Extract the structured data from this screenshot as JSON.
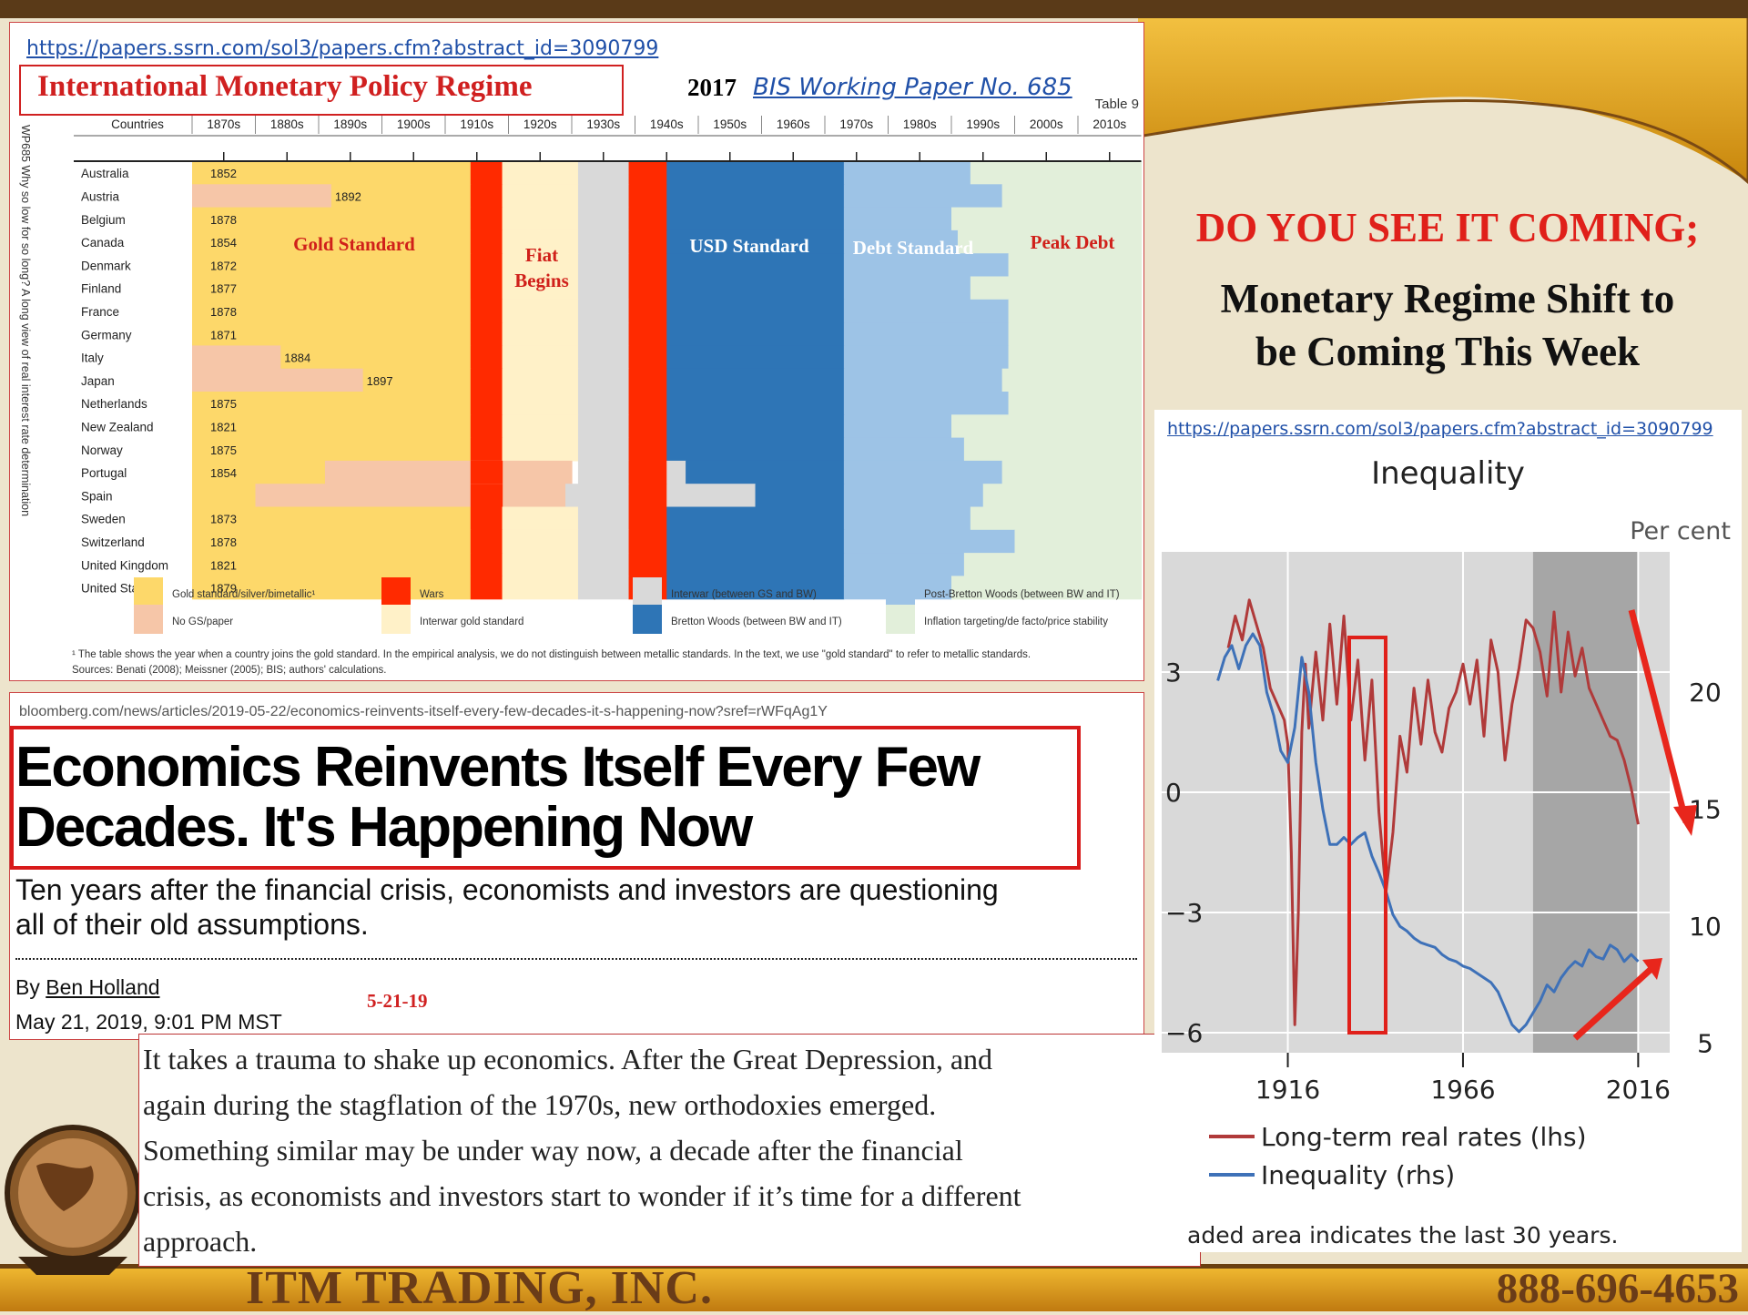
{
  "slide": {
    "headline": "DO YOU SEE IT COMING;",
    "subhead_line1": "Monetary Regime Shift to",
    "subhead_line2": "be Coming This Week",
    "company": "ITM TRADING, INC.",
    "phone": "888-696-4653",
    "colors": {
      "accent_red": "#e0201a",
      "brand_gold": "#e8a820",
      "brand_brown": "#5a3a18"
    },
    "icons": [
      "globe-icon"
    ]
  },
  "regime_panel": {
    "url": "https://papers.ssrn.com/sol3/papers.cfm?abstract_id=3090799",
    "title": "International Monetary Policy Regime",
    "year": "2017",
    "paper_link": "BIS Working Paper No. 685",
    "table_label": "Table 9",
    "side_label": "WP685 Why so low for so long? A long view of real interest rate determination",
    "footnote": "¹ The table shows the year when a country joins the gold standard. In the empirical analysis, we do not distinguish between metallic standards. In the text, we use \"gold standard\" to refer to metallic standards.",
    "sources": "Sources: Benati (2008); Meissner (2005); BIS; authors' calculations.",
    "regime_labels": {
      "gold": "Gold Standard",
      "fiat1": "Fiat",
      "fiat2": "Begins",
      "usd": "USD Standard",
      "debt": "Debt Standard",
      "peak": "Peak Debt"
    },
    "legend": [
      {
        "label": "Gold standard/silver/bimetallic¹",
        "color": "#fdd86a"
      },
      {
        "label": "No GS/paper",
        "color": "#f6c6a8"
      },
      {
        "label": "Wars",
        "color": "#ff2a00"
      },
      {
        "label": "Interwar gold standard",
        "color": "#fff1c8"
      },
      {
        "label": "Interwar (between GS and BW)",
        "color": "#d9d9d9"
      },
      {
        "label": "Bretton Woods (between BW and IT)",
        "color": "#2e75b6"
      },
      {
        "label": "Post-Bretton Woods (between BW and IT)",
        "color": "#9dc3e6"
      },
      {
        "label": "Inflation targeting/de facto/price stability",
        "color": "#e2efda"
      }
    ]
  },
  "chart_data": [
    {
      "type": "table",
      "columns": [
        "Countries",
        "1870s",
        "1880s",
        "1890s",
        "1900s",
        "1910s",
        "1920s",
        "1930s",
        "1940s",
        "1950s",
        "1960s",
        "1970s",
        "1980s",
        "1990s",
        "2000s",
        "2010s"
      ],
      "rows": [
        {
          "country": "Australia",
          "gold_year": "1852"
        },
        {
          "country": "Austria",
          "gold_year": "1892"
        },
        {
          "country": "Belgium",
          "gold_year": "1878"
        },
        {
          "country": "Canada",
          "gold_year": "1854"
        },
        {
          "country": "Denmark",
          "gold_year": "1872"
        },
        {
          "country": "Finland",
          "gold_year": "1877"
        },
        {
          "country": "France",
          "gold_year": "1878"
        },
        {
          "country": "Germany",
          "gold_year": "1871"
        },
        {
          "country": "Italy",
          "gold_year": "1884"
        },
        {
          "country": "Japan",
          "gold_year": "1897"
        },
        {
          "country": "Netherlands",
          "gold_year": "1875"
        },
        {
          "country": "New Zealand",
          "gold_year": "1821"
        },
        {
          "country": "Norway",
          "gold_year": "1875"
        },
        {
          "country": "Portugal",
          "gold_year": "1854"
        },
        {
          "country": "Spain",
          "gold_year": ""
        },
        {
          "country": "Sweden",
          "gold_year": "1873"
        },
        {
          "country": "Switzerland",
          "gold_year": "1878"
        },
        {
          "country": "United Kingdom",
          "gold_year": "1821"
        },
        {
          "country": "United States",
          "gold_year": "1879"
        }
      ],
      "interwar_end": [
        1935,
        1935,
        1935,
        1932,
        1932,
        1932,
        1937,
        1934,
        1935,
        1932,
        1937,
        1935,
        1935,
        1931,
        1929,
        1932,
        1934,
        1932,
        1932
      ],
      "bw_start": [
        1945,
        1945,
        1945,
        1945,
        1945,
        1945,
        1945,
        1945,
        1945,
        1945,
        1945,
        1945,
        1945,
        1948,
        1959,
        1945,
        1945,
        1945,
        1945
      ],
      "it_start": [
        1993,
        1998,
        1990,
        1991,
        1999,
        1993,
        1999,
        1999,
        1999,
        1998,
        1999,
        1990,
        1992,
        1998,
        1995,
        1993,
        2000,
        1992,
        1990
      ]
    },
    {
      "type": "line",
      "title": "Inequality",
      "url": "https://papers.ssrn.com/sol3/papers.cfm?abstract_id=3090799",
      "unit_right": "Per cent",
      "x_ticks": [
        1916,
        1966,
        2016
      ],
      "xlim": [
        1880,
        2025
      ],
      "y_left": {
        "ticks": [
          3,
          0,
          -3,
          -6
        ],
        "lim": [
          -6.5,
          6
        ]
      },
      "y_right": {
        "ticks": [
          20,
          15,
          10,
          5
        ],
        "lim": [
          4.6,
          26
        ]
      },
      "shaded_range": [
        1986,
        2016
      ],
      "note": "aded area indicates the last 30 years.",
      "series": [
        {
          "name": "Long-term real rates (lhs)",
          "axis": "left",
          "color": "#b03a3a",
          "x": [
            1899,
            1901,
            1903,
            1905,
            1907,
            1909,
            1911,
            1913,
            1915,
            1916,
            1917,
            1918,
            1919,
            1920,
            1921,
            1922,
            1924,
            1926,
            1928,
            1930,
            1932,
            1934,
            1936,
            1938,
            1940,
            1942,
            1944,
            1946,
            1948,
            1950,
            1952,
            1954,
            1956,
            1958,
            1960,
            1962,
            1964,
            1966,
            1968,
            1970,
            1972,
            1974,
            1976,
            1978,
            1980,
            1982,
            1984,
            1986,
            1988,
            1990,
            1992,
            1994,
            1996,
            1998,
            2000,
            2002,
            2004,
            2006,
            2008,
            2010,
            2012,
            2014,
            2016
          ],
          "y": [
            3.6,
            4.4,
            3.8,
            4.8,
            4.2,
            3.6,
            2.6,
            2.2,
            1.8,
            1.2,
            -1.5,
            -5.8,
            -3,
            1.5,
            3.2,
            1.6,
            3.5,
            1.8,
            4.2,
            2.2,
            4.4,
            1.8,
            3.3,
            0.8,
            2.8,
            -0.5,
            -2.5,
            -1,
            1.4,
            0.5,
            2.6,
            1.2,
            2.8,
            1.5,
            1,
            2.1,
            2.5,
            3.2,
            2.2,
            3.3,
            1.4,
            3.8,
            3,
            0.8,
            2.2,
            3.1,
            4.3,
            4.1,
            3.5,
            2.4,
            4.5,
            2.5,
            4,
            2.9,
            3.6,
            2.6,
            2.2,
            1.8,
            1.4,
            1.3,
            0.8,
            0.1,
            -0.8
          ]
        },
        {
          "name": "Inequality (rhs)",
          "axis": "right",
          "color": "#3e71b8",
          "x": [
            1896,
            1898,
            1900,
            1902,
            1904,
            1906,
            1908,
            1910,
            1912,
            1914,
            1916,
            1918,
            1920,
            1922,
            1924,
            1926,
            1928,
            1930,
            1932,
            1934,
            1936,
            1938,
            1940,
            1942,
            1944,
            1946,
            1948,
            1950,
            1952,
            1954,
            1956,
            1958,
            1960,
            1962,
            1964,
            1966,
            1968,
            1970,
            1972,
            1974,
            1976,
            1978,
            1980,
            1982,
            1984,
            1986,
            1988,
            1990,
            1992,
            1994,
            1996,
            1998,
            2000,
            2002,
            2004,
            2006,
            2008,
            2010,
            2012,
            2014,
            2016
          ],
          "y": [
            20.5,
            21.5,
            22,
            21,
            22,
            22.5,
            22,
            20,
            19,
            17.5,
            17,
            18.5,
            21.5,
            20,
            17,
            15,
            13.5,
            13.5,
            13.8,
            13.5,
            13.8,
            14,
            13,
            12.3,
            11.5,
            10.5,
            10,
            9.8,
            9.5,
            9.3,
            9.2,
            9.1,
            8.8,
            8.6,
            8.5,
            8.3,
            8.2,
            8,
            7.8,
            7.6,
            7.2,
            6.5,
            5.8,
            5.5,
            5.8,
            6.3,
            6.8,
            7.5,
            7.2,
            7.8,
            8.2,
            8.5,
            8.3,
            9,
            8.7,
            8.6,
            9.2,
            9,
            8.5,
            8.8,
            8.5
          ]
        }
      ]
    }
  ],
  "article": {
    "url": "bloomberg.com/news/articles/2019-05-22/economics-reinvents-itself-every-few-decades-it-s-happening-now?sref=rWFqAg1Y",
    "headline1": "Economics Reinvents Itself Every Few",
    "headline2": "Decades. It's Happening Now",
    "deck1": "Ten years after the financial crisis, economists and investors are questioning",
    "deck2": "all of their old assumptions.",
    "by": "By",
    "author": "Ben Holland",
    "date": "May 21, 2019, 9:01 PM MST",
    "date_note": "5-21-19",
    "body": [
      "It takes a trauma to shake up economics. After the Great Depression, and",
      "again during the stagflation of the 1970s, new orthodoxies emerged.",
      "Something similar may be under way now, a decade after the financial",
      "crisis, as economists and investors start to wonder if it’s time for a different",
      "approach."
    ]
  }
}
